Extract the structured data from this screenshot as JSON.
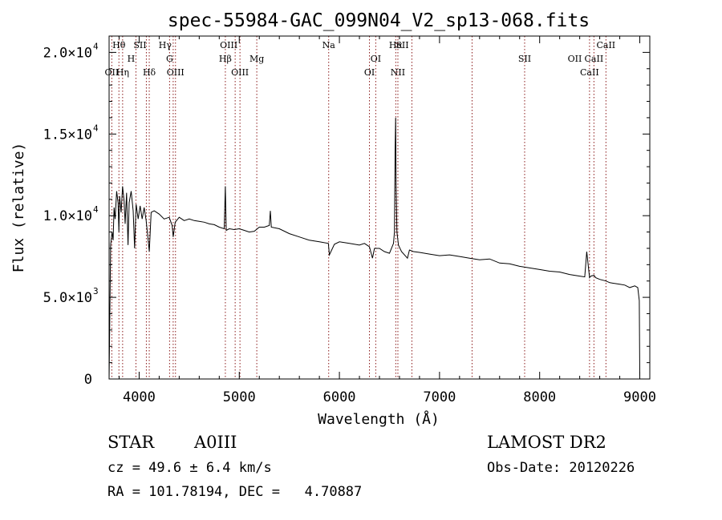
{
  "chart_data": {
    "type": "line",
    "title": "spec-55984-GAC_099N04_V2_sp13-068.fits",
    "xlabel": "Wavelength (Å)",
    "ylabel": "Flux (relative)",
    "xlim": [
      3700,
      9100
    ],
    "ylim": [
      0,
      21000
    ],
    "x_ticks": [
      {
        "value": 4000,
        "label": "4000"
      },
      {
        "value": 5000,
        "label": "5000"
      },
      {
        "value": 6000,
        "label": "6000"
      },
      {
        "value": 7000,
        "label": "7000"
      },
      {
        "value": 8000,
        "label": "8000"
      },
      {
        "value": 9000,
        "label": "9000"
      }
    ],
    "y_ticks": [
      {
        "value": 0,
        "mant": "0",
        "exp": ""
      },
      {
        "value": 5000,
        "mant": "5.0×10",
        "exp": "3"
      },
      {
        "value": 10000,
        "mant": "1.0×10",
        "exp": "4"
      },
      {
        "value": 15000,
        "mant": "1.5×10",
        "exp": "4"
      },
      {
        "value": 20000,
        "mant": "2.0×10",
        "exp": "4"
      }
    ],
    "grid": false,
    "line_color": "#000000",
    "marker_color": "#8b1a1a",
    "series": [
      {
        "x": [
          3700,
          3715,
          3730,
          3740,
          3750,
          3760,
          3775,
          3790,
          3798,
          3805,
          3820,
          3835,
          3850,
          3860,
          3875,
          3889,
          3900,
          3920,
          3940,
          3955,
          3970,
          3990,
          4010,
          4030,
          4050,
          4070,
          4090,
          4101,
          4120,
          4150,
          4200,
          4250,
          4300,
          4330,
          4340,
          4360,
          4400,
          4450,
          4500,
          4550,
          4600,
          4650,
          4700,
          4750,
          4800,
          4850,
          4861,
          4870,
          4900,
          4950,
          5000,
          5050,
          5100,
          5150,
          5200,
          5250,
          5300,
          5310,
          5320,
          5400,
          5500,
          5600,
          5700,
          5800,
          5890,
          5900,
          5950,
          6000,
          6100,
          6200,
          6250,
          6300,
          6330,
          6350,
          6400,
          6450,
          6500,
          6540,
          6550,
          6556,
          6562,
          6566,
          6575,
          6590,
          6620,
          6680,
          6700,
          6740,
          6800,
          6900,
          7000,
          7100,
          7200,
          7300,
          7400,
          7500,
          7600,
          7700,
          7800,
          7900,
          8000,
          8100,
          8200,
          8300,
          8400,
          8450,
          8470,
          8498,
          8510,
          8542,
          8560,
          8600,
          8662,
          8700,
          8800,
          8850,
          8900,
          8950,
          8980,
          8995,
          9000
        ],
        "y": [
          0,
          8200,
          9000,
          8500,
          10500,
          9800,
          11500,
          10800,
          9000,
          11200,
          10200,
          11800,
          10900,
          9500,
          11400,
          8200,
          10800,
          11500,
          10300,
          8000,
          10700,
          9800,
          10600,
          9800,
          10500,
          9700,
          8500,
          7800,
          10200,
          10300,
          10100,
          9800,
          9900,
          9400,
          8700,
          9600,
          9900,
          9700,
          9800,
          9700,
          9650,
          9600,
          9500,
          9450,
          9300,
          9200,
          11800,
          9100,
          9200,
          9150,
          9200,
          9100,
          9000,
          9050,
          9300,
          9300,
          9400,
          10300,
          9300,
          9200,
          8900,
          8700,
          8500,
          8400,
          8300,
          7600,
          8250,
          8400,
          8300,
          8200,
          8300,
          8100,
          7400,
          8000,
          8000,
          7800,
          7700,
          8300,
          9000,
          14000,
          16000,
          12000,
          9000,
          8200,
          7800,
          7400,
          7900,
          7800,
          7750,
          7650,
          7550,
          7600,
          7500,
          7400,
          7300,
          7350,
          7100,
          7050,
          6900,
          6800,
          6700,
          6600,
          6550,
          6400,
          6300,
          6250,
          7800,
          6200,
          6300,
          6350,
          6200,
          6100,
          6000,
          5900,
          5800,
          5750,
          5600,
          5700,
          5600,
          4800,
          200
        ]
      }
    ],
    "lines": [
      {
        "name": "Hθ",
        "x": 3798,
        "row": 0,
        "dx": 0
      },
      {
        "name": "OII",
        "x": 3727,
        "row": 2,
        "dx": 0
      },
      {
        "name": "Hη",
        "x": 3835,
        "row": 2,
        "dx": 0
      },
      {
        "name": "H",
        "x": 3968,
        "row": 1,
        "dx": -6
      },
      {
        "name": "SII",
        "x": 4072,
        "row": 0,
        "dx": -8
      },
      {
        "name": "Hδ",
        "x": 4101,
        "row": 2,
        "dx": 0
      },
      {
        "name": "Hγ",
        "x": 4340,
        "row": 0,
        "dx": -10
      },
      {
        "name": "G",
        "x": 4304,
        "row": 1,
        "dx": 0
      },
      {
        "name": "OIII",
        "x": 4363,
        "row": 2,
        "dx": 0
      },
      {
        "name": "OIII",
        "x": 4959,
        "row": 0,
        "dx": -8
      },
      {
        "name": "Hβ",
        "x": 4861,
        "row": 1,
        "dx": 0
      },
      {
        "name": "OIII",
        "x": 5007,
        "row": 2,
        "dx": 0
      },
      {
        "name": "Mg",
        "x": 5175,
        "row": 1,
        "dx": 0
      },
      {
        "name": "Na",
        "x": 5893,
        "row": 0,
        "dx": 0
      },
      {
        "name": "OI",
        "x": 6363,
        "row": 1,
        "dx": 0
      },
      {
        "name": "OI",
        "x": 6300,
        "row": 2,
        "dx": 0
      },
      {
        "name": "Hα",
        "x": 6563,
        "row": 0,
        "dx": 0
      },
      {
        "name": "SII",
        "x": 6724,
        "row": 0,
        "dx": -12
      },
      {
        "name": "NII",
        "x": 6584,
        "row": 2,
        "dx": 0
      },
      {
        "name": "OII",
        "x": 7325,
        "row": 1,
        "dx": 128
      },
      {
        "name": "SII",
        "x": 7850,
        "row": 1,
        "dx": 0
      },
      {
        "name": "CaII",
        "x": 8662,
        "row": 0,
        "dx": 0
      },
      {
        "name": "CaII",
        "x": 8542,
        "row": 1,
        "dx": 0
      },
      {
        "name": "CaII",
        "x": 8498,
        "row": 2,
        "dx": 0
      }
    ]
  },
  "info": {
    "class": "STAR",
    "subclass": "A0III",
    "survey": "LAMOST DR2",
    "cz": "cz = 49.6 ± 6.4 km/s",
    "obs_date": "Obs-Date: 20120226",
    "coords": "RA = 101.78194, DEC =   4.70887"
  }
}
